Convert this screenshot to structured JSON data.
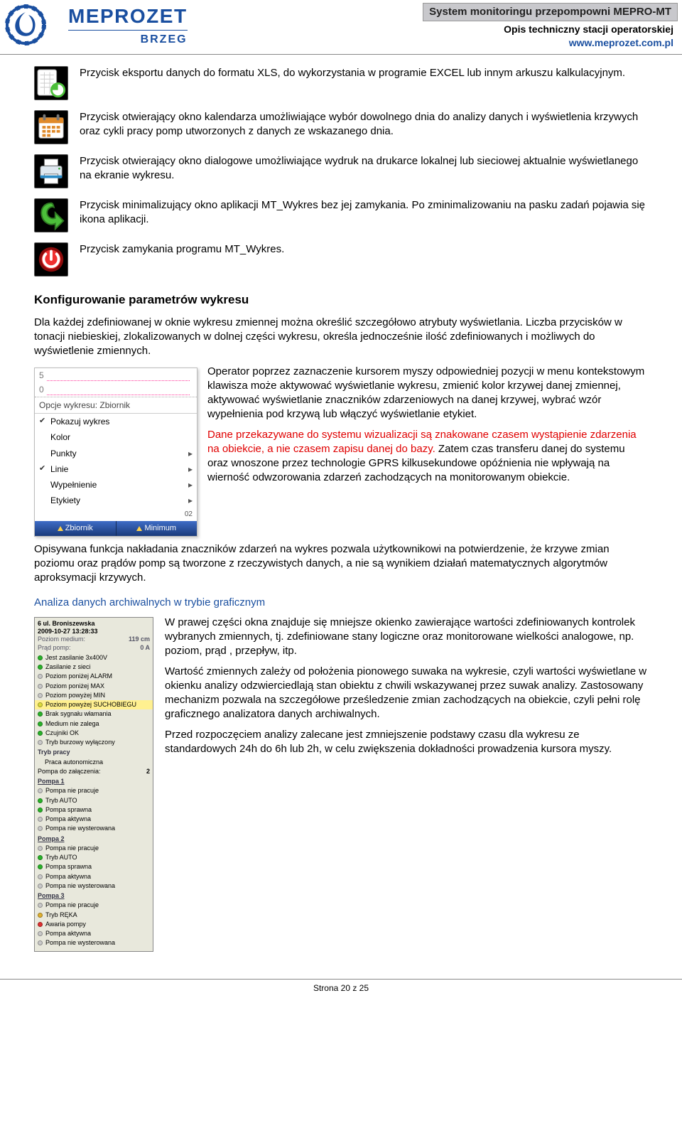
{
  "header": {
    "logo_name": "MEPROZET",
    "logo_sub": "BRZEG",
    "right_box": "System monitoringu przepompowni MEPRO-MT",
    "right_line2": "Opis techniczny stacji operatorskiej",
    "right_url": "www.meprozet.com.pl"
  },
  "icons": [
    {
      "name": "export-xls-icon",
      "desc": "Przycisk eksportu danych do formatu XLS, do wykorzystania w programie EXCEL lub innym arkuszu kalkulacyjnym.",
      "svg_bg": "#000",
      "accent1": "#ffffff",
      "accent2": "#4cbf3a"
    },
    {
      "name": "calendar-icon",
      "desc": "Przycisk otwierający okno kalendarza umożliwiające wybór dowolnego dnia do analizy danych i wyświetlenia krzywych oraz cykli pracy pomp utworzonych z danych ze wskazanego dnia.",
      "svg_bg": "#000",
      "accent1": "#ffffff",
      "accent2": "#e08a2a"
    },
    {
      "name": "printer-icon",
      "desc": "Przycisk otwierający okno dialogowe umożliwiające wydruk na drukarce lokalnej lub sieciowej aktualnie wyświetlanego na ekranie wykresu.",
      "svg_bg": "#000",
      "accent1": "#dfe8f0",
      "accent2": "#2a8ac6"
    },
    {
      "name": "minimize-icon",
      "desc": "Przycisk minimalizujący okno aplikacji MT_Wykres bez jej zamykania. Po zminimalizowaniu na pasku zadań pojawia się ikona aplikacji.",
      "svg_bg": "#000",
      "accent1": "#4cbf3a",
      "accent2": "#2f7a22"
    },
    {
      "name": "power-icon",
      "desc": "Przycisk zamykania programu MT_Wykres.",
      "svg_bg": "#000",
      "accent1": "#f03030",
      "accent2": "#8a0b0b"
    }
  ],
  "section_config_title": "Konfigurowanie parametrów wykresu",
  "config_intro": "Dla każdej zdefiniowanej w oknie wykresu zmiennej można określić szczegółowo atrybuty wyświetlania. Liczba przycisków w tonacji niebieskiej, zlokalizowanych w dolnej części wykresu, określa jednocześnie ilość zdefiniowanych i możliwych do wyświetlenie zmiennych.",
  "context_menu": {
    "axis_top": "5",
    "axis_bottom": "0",
    "title": "Opcje wykresu: Zbiornik",
    "items": [
      {
        "label": "Pokazuj wykres",
        "checked": true,
        "arrow": false
      },
      {
        "label": "Kolor",
        "checked": false,
        "arrow": false
      },
      {
        "label": "Punkty",
        "checked": false,
        "arrow": true
      },
      {
        "label": "Linie",
        "checked": true,
        "arrow": true
      },
      {
        "label": "Wypełnienie",
        "checked": false,
        "arrow": true
      },
      {
        "label": "Etykiety",
        "checked": false,
        "arrow": true
      }
    ],
    "right_marker": "02",
    "tabs": [
      "Zbiornik",
      "Minimum"
    ]
  },
  "config_para1": "Operator poprzez zaznaczenie kursorem myszy odpowiedniej pozycji w menu kontekstowym klawisza może aktywować wyświetlanie wykresu, zmienić kolor krzywej danej zmiennej, aktywować wyświetlanie znaczników zdarzeniowych na danej krzywej, wybrać wzór wypełnienia pod krzywą lub włączyć wyświetlanie etykiet.",
  "config_red_part": "Dane przekazywane do systemu wizualizacji są znakowane czasem wystąpienie zdarzenia na obiekcie, a nie czasem zapisu danej do bazy.",
  "config_after_red": " Zatem czas transferu danej do systemu oraz wnoszone przez technologie GPRS kilkusekundowe opóźnienia nie wpływają na wierność odwzorowania zdarzeń zachodzących na monitorowanym obiekcie.",
  "config_para3": "Opisywana funkcja nakładania znaczników zdarzeń na wykres pozwala użytkownikowi na potwierdzenie, że krzywe zmian poziomu oraz prądów pomp są tworzone z rzeczywistych danych, a nie są wynikiem działań matematycznych algorytmów aproksymacji krzywych.",
  "sub_title": "Analiza danych archiwalnych w trybie graficznym",
  "status_panel": {
    "title1": "6 ul. Broniszewska",
    "title2": "2009-10-27 13:28:33",
    "medium_label": "Poziom medium:",
    "medium_val": "119 cm",
    "prad_label": "Prąd pomp:",
    "prad_val": "0 A",
    "lines": [
      {
        "color": "#29b329",
        "text": "Jest zasilanie 3x400V"
      },
      {
        "color": "#29b329",
        "text": "Zasilanie z sieci"
      },
      {
        "color": "#c9c9c9",
        "text": "Poziom poniżej ALARM"
      },
      {
        "color": "#c9c9c9",
        "text": "Poziom poniżej MAX"
      },
      {
        "color": "#c9c9c9",
        "text": "Poziom powyżej MIN"
      },
      {
        "color": "#dedc3a",
        "text": "Poziom powyżej SUCHOBIEGU",
        "hl": true
      },
      {
        "color": "#29b329",
        "text": "Brak sygnału włamania"
      },
      {
        "color": "#29b329",
        "text": "Medium nie zalega"
      },
      {
        "color": "#29b329",
        "text": "Czujniki OK"
      },
      {
        "color": "#c9c9c9",
        "text": "Tryb burzowy wyłączony"
      }
    ],
    "tryb_label": "Tryb pracy",
    "tryb_val": "Praca autonomiczna",
    "zal_label": "Pompa do załączenia:",
    "zal_val": "2",
    "pumps": [
      {
        "name": "Pompa 1",
        "rows": [
          {
            "color": "#c9c9c9",
            "text": "Pompa nie pracuje"
          },
          {
            "color": "#29b329",
            "text": "Tryb AUTO"
          },
          {
            "color": "#29b329",
            "text": "Pompa sprawna"
          },
          {
            "color": "#c9c9c9",
            "text": "Pompa aktywna"
          },
          {
            "color": "#c9c9c9",
            "text": "Pompa nie wysterowana"
          }
        ]
      },
      {
        "name": "Pompa 2",
        "rows": [
          {
            "color": "#c9c9c9",
            "text": "Pompa nie pracuje"
          },
          {
            "color": "#29b329",
            "text": "Tryb AUTO"
          },
          {
            "color": "#29b329",
            "text": "Pompa sprawna"
          },
          {
            "color": "#c9c9c9",
            "text": "Pompa aktywna"
          },
          {
            "color": "#c9c9c9",
            "text": "Pompa nie wysterowana"
          }
        ]
      },
      {
        "name": "Pompa 3",
        "rows": [
          {
            "color": "#c9c9c9",
            "text": "Pompa nie pracuje"
          },
          {
            "color": "#e0b030",
            "text": "Tryb RĘKA"
          },
          {
            "color": "#e03030",
            "text": "Awaria pompy"
          },
          {
            "color": "#c9c9c9",
            "text": "Pompa aktywna"
          },
          {
            "color": "#c9c9c9",
            "text": "Pompa nie wysterowana"
          }
        ]
      }
    ]
  },
  "analysis_p1": "W prawej części okna znajduje się mniejsze okienko zawierające wartości zdefiniowanych kontrolek wybranych zmiennych, tj. zdefiniowane stany logiczne oraz monitorowane wielkości analogowe, np. poziom, prąd , przepływ, itp.",
  "analysis_p2": "Wartość zmiennych zależy od położenia pionowego suwaka na wykresie, czyli wartości wyświetlane w okienku analizy odzwierciedlają stan obiektu z chwili wskazywanej przez suwak analizy. Zastosowany mechanizm pozwala na szczegółowe prześledzenie zmian zachodzących na obiekcie, czyli pełni rolę graficznego analizatora danych archiwalnych.",
  "analysis_p3": "Przed rozpoczęciem analizy zalecane jest zmniejszenie podstawy czasu dla wykresu ze standardowych 24h do 6h lub 2h, w celu zwiększenia dokładności prowadzenia kursora myszy.",
  "footer": "Strona 20 z 25"
}
